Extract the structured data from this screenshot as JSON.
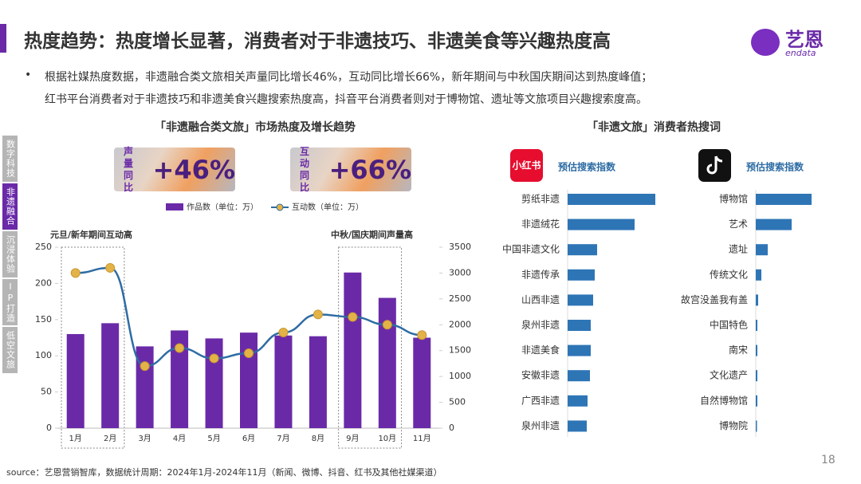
{
  "header": {
    "title": "热度趋势：热度增长显著，消费者对于非遗技巧、非遗美食等兴趣热度高",
    "logo_cn": "艺恩",
    "logo_en": "endata"
  },
  "bullet_lines": [
    "根据社媒热度数据，非遗融合类文旅相关声量同比增长46%，互动同比增长66%，新年期间与中秋国庆期间达到热度峰值；",
    "红书平台消费者对于非遗技巧和非遗美食兴趣搜索热度高，抖音平台消费者则对于博物馆、遗址等文旅项目兴趣搜索度高。"
  ],
  "sidebar": [
    "数字科技",
    "非遗融合",
    "沉浸体验",
    "IP打造",
    "低空文旅"
  ],
  "sidebar_active": 1,
  "chart_data": [
    {
      "type": "combo",
      "title": "「非遗融合类文旅」市场热度及增长趋势",
      "badges": [
        {
          "label_lines": [
            "声量",
            "同比"
          ],
          "value": "+46%"
        },
        {
          "label_lines": [
            "互动",
            "同比"
          ],
          "value": "+66%"
        }
      ],
      "annotations": [
        "元旦/新年期间互动高",
        "中秋/国庆期间声量高"
      ],
      "categories": [
        "1月",
        "2月",
        "3月",
        "4月",
        "5月",
        "6月",
        "7月",
        "8月",
        "9月",
        "10月",
        "11月"
      ],
      "series": [
        {
          "name": "作品数（单位：万）",
          "type": "bar",
          "color": "#6a2aa8",
          "values": [
            130,
            145,
            113,
            135,
            124,
            132,
            128,
            127,
            215,
            180,
            125
          ]
        },
        {
          "name": "互动数（单位：万）",
          "type": "line",
          "axis": "y2",
          "color": "#2e6ca4",
          "marker_color": "#e3b347",
          "values": [
            3000,
            3100,
            1200,
            1550,
            1350,
            1450,
            1850,
            2200,
            2150,
            2000,
            1800
          ]
        }
      ],
      "ylim": [
        0,
        250
      ],
      "yticks": [
        0,
        50,
        100,
        150,
        200,
        250
      ],
      "y2lim": [
        0,
        3500
      ],
      "y2ticks": [
        0,
        500,
        1000,
        1500,
        2000,
        2500,
        3000,
        3500
      ]
    },
    {
      "type": "hbar",
      "title": "「非遗文旅」消费者热搜词",
      "platform": "小红书",
      "series_label": "预估搜索指数",
      "color": "#2e75b6",
      "categories": [
        "剪纸非遗",
        "非遗绒花",
        "中国非遗文化",
        "非遗传承",
        "山西非遗",
        "泉州非遗",
        "非遗美食",
        "安徽非遗",
        "广西非遗",
        "泉州非遗"
      ],
      "values": [
        110,
        84,
        37,
        34,
        32,
        29,
        29,
        28,
        25,
        24
      ],
      "xlim": [
        0,
        115
      ]
    },
    {
      "type": "hbar",
      "series_label": "预估搜索指数",
      "color": "#2e75b6",
      "categories": [
        "博物馆",
        "艺术",
        "遗址",
        "传统文化",
        "故宫没盖我有盖",
        "中国特色",
        "南宋",
        "文化遗产",
        "自然博物馆",
        "博物院"
      ],
      "values": [
        70,
        45,
        15,
        7,
        3,
        2,
        2,
        2,
        2,
        1.5
      ],
      "xlim": [
        0,
        115
      ]
    }
  ],
  "source": "source：艺恩营销智库，数据统计周期：2024年1月-2024年11月（新闻、微博、抖音、红书及其他社媒渠道）",
  "page_number": "18"
}
